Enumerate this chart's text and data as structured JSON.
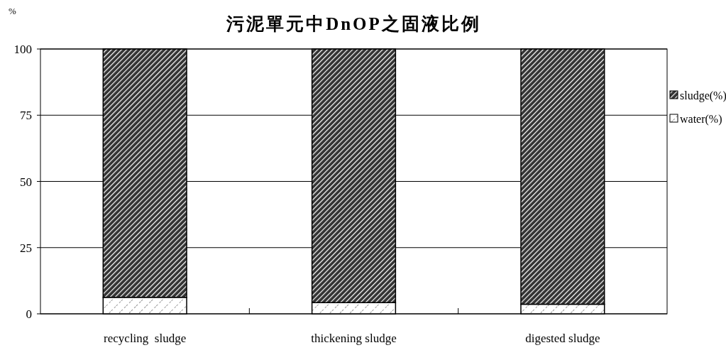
{
  "chart_data": {
    "type": "bar",
    "title": "污泥單元中DnOP之固液比例",
    "ylabel": "%",
    "categories": [
      "recycling  sludge",
      "thickening sludge",
      "digested sludge"
    ],
    "stacked": true,
    "series": [
      {
        "name": "water(%)",
        "color": "#ffffff",
        "values": [
          6.2,
          4.2,
          3.6
        ]
      },
      {
        "name": "sludge(%)",
        "color": "#333333",
        "values": [
          93.8,
          95.8,
          96.4
        ]
      }
    ],
    "ylim": [
      0,
      100
    ],
    "yticks": [
      0,
      25,
      50,
      75,
      100
    ],
    "grid": "y",
    "legend": "right"
  }
}
